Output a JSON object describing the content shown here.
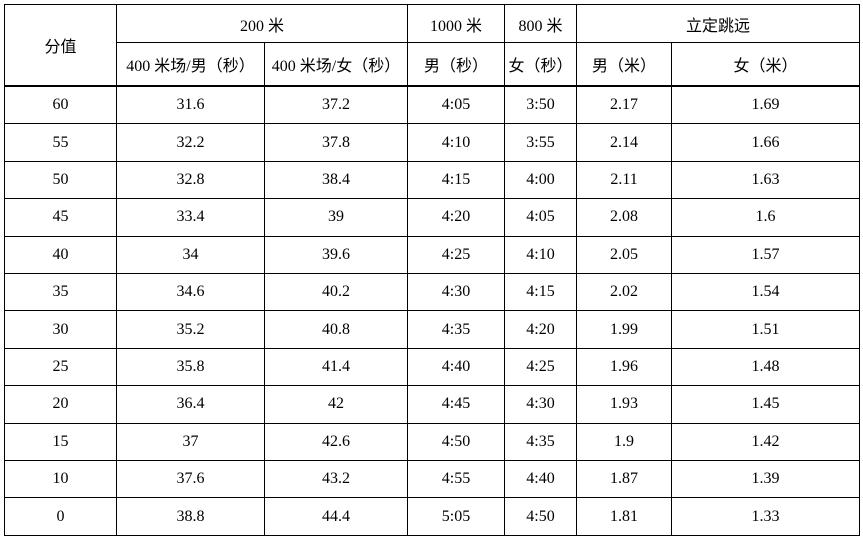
{
  "table": {
    "score_header": "分值",
    "top_headers": [
      {
        "label": "200 米"
      },
      {
        "label": "1000 米"
      },
      {
        "label": "800 米"
      },
      {
        "label": "立定跳远"
      }
    ],
    "sub_headers": [
      "400 米场/男（秒）",
      "400 米场/女（秒）",
      "男（秒）",
      "女（秒）",
      "男（米）",
      "女（米）"
    ],
    "rows": [
      [
        "60",
        "31.6",
        "37.2",
        "4:05",
        "3:50",
        "2.17",
        "1.69"
      ],
      [
        "55",
        "32.2",
        "37.8",
        "4:10",
        "3:55",
        "2.14",
        "1.66"
      ],
      [
        "50",
        "32.8",
        "38.4",
        "4:15",
        "4:00",
        "2.11",
        "1.63"
      ],
      [
        "45",
        "33.4",
        "39",
        "4:20",
        "4:05",
        "2.08",
        "1.6"
      ],
      [
        "40",
        "34",
        "39.6",
        "4:25",
        "4:10",
        "2.05",
        "1.57"
      ],
      [
        "35",
        "34.6",
        "40.2",
        "4:30",
        "4:15",
        "2.02",
        "1.54"
      ],
      [
        "30",
        "35.2",
        "40.8",
        "4:35",
        "4:20",
        "1.99",
        "1.51"
      ],
      [
        "25",
        "35.8",
        "41.4",
        "4:40",
        "4:25",
        "1.96",
        "1.48"
      ],
      [
        "20",
        "36.4",
        "42",
        "4:45",
        "4:30",
        "1.93",
        "1.45"
      ],
      [
        "15",
        "37",
        "42.6",
        "4:50",
        "4:35",
        "1.9",
        "1.42"
      ],
      [
        "10",
        "37.6",
        "43.2",
        "4:55",
        "4:40",
        "1.87",
        "1.39"
      ],
      [
        "0",
        "38.8",
        "44.4",
        "5:05",
        "4:50",
        "1.81",
        "1.33"
      ]
    ]
  }
}
